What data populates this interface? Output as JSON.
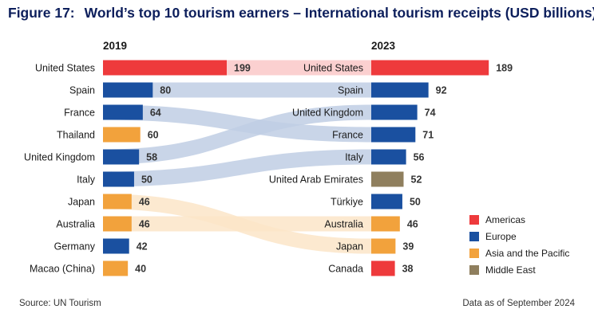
{
  "title": {
    "figure": "Figure 17:",
    "text": "World’s top 10 tourism earners – International tourism receipts (USD billions)"
  },
  "colors": {
    "Americas": "#ee3a3c",
    "Europe": "#1a50a0",
    "Asia and the Pacific": "#f2a23c",
    "Middle East": "#8f7f5e"
  },
  "legend": [
    "Americas",
    "Europe",
    "Asia and the Pacific",
    "Middle East"
  ],
  "footer": {
    "source": "Source: UN Tourism",
    "as_of": "Data as of September 2024"
  },
  "chart_data": {
    "type": "bar",
    "title": "World’s top 10 tourism earners – International tourism receipts (USD billions)",
    "panels": [
      {
        "label": "2019",
        "categories": [
          "United States",
          "Spain",
          "France",
          "Thailand",
          "United Kingdom",
          "Italy",
          "Japan",
          "Australia",
          "Germany",
          "Macao (China)"
        ],
        "values": [
          199,
          80,
          64,
          60,
          58,
          50,
          46,
          46,
          42,
          40
        ],
        "regions": [
          "Americas",
          "Europe",
          "Europe",
          "Asia and the Pacific",
          "Europe",
          "Europe",
          "Asia and the Pacific",
          "Asia and the Pacific",
          "Europe",
          "Asia and the Pacific"
        ]
      },
      {
        "label": "2023",
        "categories": [
          "United States",
          "Spain",
          "United Kingdom",
          "France",
          "Italy",
          "United Arab Emirates",
          "Türkiye",
          "Australia",
          "Japan",
          "Canada"
        ],
        "values": [
          189,
          92,
          74,
          71,
          56,
          52,
          50,
          46,
          39,
          38
        ],
        "regions": [
          "Americas",
          "Europe",
          "Europe",
          "Europe",
          "Europe",
          "Middle East",
          "Europe",
          "Asia and the Pacific",
          "Asia and the Pacific",
          "Americas"
        ]
      }
    ],
    "links": [
      {
        "name": "United States",
        "from_rank": 1,
        "to_rank": 1,
        "region": "Americas"
      },
      {
        "name": "Spain",
        "from_rank": 2,
        "to_rank": 2,
        "region": "Europe"
      },
      {
        "name": "France",
        "from_rank": 3,
        "to_rank": 4,
        "region": "Europe"
      },
      {
        "name": "United Kingdom",
        "from_rank": 5,
        "to_rank": 3,
        "region": "Europe"
      },
      {
        "name": "Italy",
        "from_rank": 6,
        "to_rank": 5,
        "region": "Europe"
      },
      {
        "name": "Japan",
        "from_rank": 7,
        "to_rank": 9,
        "region": "Asia and the Pacific"
      },
      {
        "name": "Australia",
        "from_rank": 8,
        "to_rank": 8,
        "region": "Asia and the Pacific"
      }
    ],
    "legend_position": "bottom-right",
    "grid": false
  }
}
